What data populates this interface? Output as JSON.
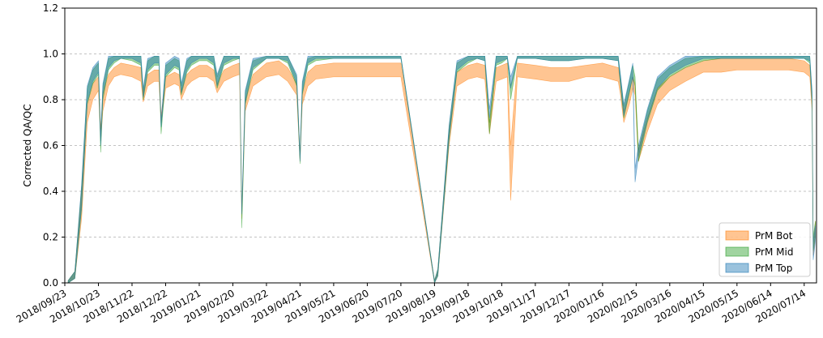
{
  "chart_data": {
    "type": "area",
    "title": "",
    "xlabel": "",
    "ylabel": "Corrected QA/QC",
    "ylim": [
      0.0,
      1.2
    ],
    "xlim": [
      "2018-09-23",
      "2020-07-25"
    ],
    "y_ticks": [
      "0.0",
      "0.2",
      "0.4",
      "0.6",
      "0.8",
      "1.0",
      "1.2"
    ],
    "y_tick_values": [
      0.0,
      0.2,
      0.4,
      0.6,
      0.8,
      1.0,
      1.2
    ],
    "x_ticks": [
      "2018/09/23",
      "2018/10/23",
      "2018/11/22",
      "2018/12/22",
      "2019/01/21",
      "2019/02/20",
      "2019/03/22",
      "2019/04/21",
      "2019/05/21",
      "2019/06/20",
      "2019/07/20",
      "2019/08/19",
      "2019/09/18",
      "2019/10/18",
      "2019/11/17",
      "2019/12/17",
      "2020/01/16",
      "2020/02/15",
      "2020/03/16",
      "2020/04/15",
      "2020/05/15",
      "2020/06/14",
      "2020/07/14"
    ],
    "x_tick_dates": [
      "2018-09-23",
      "2018-10-23",
      "2018-11-22",
      "2018-12-22",
      "2019-01-21",
      "2019-02-20",
      "2019-03-22",
      "2019-04-21",
      "2019-05-21",
      "2019-06-20",
      "2019-07-20",
      "2019-08-19",
      "2019-09-18",
      "2019-10-18",
      "2019-11-17",
      "2019-12-17",
      "2020-01-16",
      "2020-02-15",
      "2020-03-16",
      "2020-04-15",
      "2020-05-15",
      "2020-06-14",
      "2020-07-14"
    ],
    "grid": {
      "y": true,
      "x": false,
      "style": "dashed"
    },
    "legend_position": "lower-right",
    "series": [
      {
        "name": "PrM Bot",
        "color": "#ff7f0e",
        "x": [
          "2018-09-26",
          "2018-10-02",
          "2018-10-08",
          "2018-10-13",
          "2018-10-18",
          "2018-10-23",
          "2018-10-25",
          "2018-10-27",
          "2018-11-01",
          "2018-11-06",
          "2018-11-12",
          "2018-11-22",
          "2018-11-30",
          "2018-12-02",
          "2018-12-06",
          "2018-12-12",
          "2018-12-16",
          "2018-12-18",
          "2018-12-22",
          "2018-12-30",
          "2019-01-03",
          "2019-01-05",
          "2019-01-10",
          "2019-01-14",
          "2019-01-21",
          "2019-01-28",
          "2019-02-03",
          "2019-02-06",
          "2019-02-12",
          "2019-02-20",
          "2019-02-26",
          "2019-02-28",
          "2019-03-03",
          "2019-03-10",
          "2019-03-22",
          "2019-04-02",
          "2019-04-10",
          "2019-04-18",
          "2019-04-21",
          "2019-04-23",
          "2019-04-28",
          "2019-05-05",
          "2019-05-21",
          "2019-06-05",
          "2019-06-20",
          "2019-07-05",
          "2019-07-20",
          "2019-08-19",
          "2019-08-22",
          "2019-09-01",
          "2019-09-08",
          "2019-09-18",
          "2019-09-26",
          "2019-10-03",
          "2019-10-07",
          "2019-10-13",
          "2019-10-18",
          "2019-10-23",
          "2019-10-26",
          "2019-11-01",
          "2019-11-17",
          "2019-12-01",
          "2019-12-17",
          "2020-01-01",
          "2020-01-16",
          "2020-01-30",
          "2020-02-01",
          "2020-02-04",
          "2020-02-09",
          "2020-02-12",
          "2020-02-14",
          "2020-02-17",
          "2020-02-25",
          "2020-03-05",
          "2020-03-16",
          "2020-03-30",
          "2020-04-15",
          "2020-05-01",
          "2020-05-15",
          "2020-05-30",
          "2020-06-14",
          "2020-06-30",
          "2020-07-14",
          "2020-07-19",
          "2020-07-21",
          "2020-07-22",
          "2020-07-24"
        ],
        "lower": [
          0.0,
          0.02,
          0.28,
          0.7,
          0.8,
          0.84,
          0.62,
          0.75,
          0.86,
          0.9,
          0.91,
          0.9,
          0.88,
          0.79,
          0.86,
          0.88,
          0.88,
          0.7,
          0.85,
          0.87,
          0.86,
          0.8,
          0.86,
          0.88,
          0.9,
          0.9,
          0.88,
          0.83,
          0.88,
          0.9,
          0.91,
          0.28,
          0.75,
          0.86,
          0.9,
          0.91,
          0.88,
          0.82,
          0.53,
          0.78,
          0.86,
          0.89,
          0.9,
          0.9,
          0.9,
          0.9,
          0.9,
          0.0,
          0.03,
          0.6,
          0.86,
          0.89,
          0.9,
          0.89,
          0.65,
          0.88,
          0.89,
          0.9,
          0.36,
          0.9,
          0.89,
          0.88,
          0.88,
          0.9,
          0.9,
          0.88,
          0.82,
          0.7,
          0.78,
          0.85,
          0.82,
          0.53,
          0.66,
          0.78,
          0.84,
          0.88,
          0.92,
          0.92,
          0.93,
          0.93,
          0.93,
          0.93,
          0.92,
          0.9,
          0.75,
          0.12,
          0.2
        ],
        "upper": [
          0.01,
          0.05,
          0.4,
          0.78,
          0.87,
          0.9,
          0.67,
          0.83,
          0.91,
          0.94,
          0.96,
          0.95,
          0.94,
          0.83,
          0.91,
          0.93,
          0.93,
          0.73,
          0.9,
          0.92,
          0.91,
          0.84,
          0.91,
          0.93,
          0.95,
          0.95,
          0.93,
          0.87,
          0.93,
          0.95,
          0.96,
          0.31,
          0.8,
          0.91,
          0.96,
          0.97,
          0.94,
          0.87,
          0.56,
          0.83,
          0.92,
          0.95,
          0.96,
          0.96,
          0.96,
          0.96,
          0.96,
          0.01,
          0.06,
          0.66,
          0.92,
          0.95,
          0.96,
          0.95,
          0.7,
          0.94,
          0.95,
          0.96,
          0.6,
          0.96,
          0.95,
          0.94,
          0.94,
          0.95,
          0.96,
          0.94,
          0.87,
          0.75,
          0.83,
          0.9,
          0.87,
          0.58,
          0.72,
          0.85,
          0.9,
          0.94,
          0.97,
          0.98,
          0.98,
          0.98,
          0.98,
          0.98,
          0.97,
          0.95,
          0.8,
          0.16,
          0.27
        ]
      },
      {
        "name": "PrM Mid",
        "color": "#2ca02c",
        "x": [
          "2018-09-26",
          "2018-10-02",
          "2018-10-08",
          "2018-10-13",
          "2018-10-18",
          "2018-10-23",
          "2018-10-25",
          "2018-10-27",
          "2018-11-01",
          "2018-11-06",
          "2018-11-12",
          "2018-11-22",
          "2018-11-30",
          "2018-12-02",
          "2018-12-06",
          "2018-12-12",
          "2018-12-16",
          "2018-12-18",
          "2018-12-22",
          "2018-12-30",
          "2019-01-03",
          "2019-01-05",
          "2019-01-10",
          "2019-01-14",
          "2019-01-21",
          "2019-01-28",
          "2019-02-03",
          "2019-02-06",
          "2019-02-12",
          "2019-02-20",
          "2019-02-26",
          "2019-02-28",
          "2019-03-03",
          "2019-03-10",
          "2019-03-22",
          "2019-04-02",
          "2019-04-10",
          "2019-04-18",
          "2019-04-21",
          "2019-04-23",
          "2019-04-28",
          "2019-05-05",
          "2019-05-21",
          "2019-06-05",
          "2019-06-20",
          "2019-07-05",
          "2019-07-20",
          "2019-08-19",
          "2019-08-22",
          "2019-09-01",
          "2019-09-08",
          "2019-09-18",
          "2019-09-26",
          "2019-10-03",
          "2019-10-07",
          "2019-10-13",
          "2019-10-18",
          "2019-10-23",
          "2019-10-26",
          "2019-11-01",
          "2019-11-17",
          "2019-12-01",
          "2019-12-17",
          "2020-01-01",
          "2020-01-16",
          "2020-01-30",
          "2020-02-01",
          "2020-02-04",
          "2020-02-09",
          "2020-02-12",
          "2020-02-14",
          "2020-02-17",
          "2020-02-25",
          "2020-03-05",
          "2020-03-16",
          "2020-03-30",
          "2020-04-15",
          "2020-05-01",
          "2020-05-15",
          "2020-05-30",
          "2020-06-14",
          "2020-06-30",
          "2020-07-14",
          "2020-07-19",
          "2020-07-21",
          "2020-07-22",
          "2020-07-24"
        ],
        "lower": [
          0.0,
          0.02,
          0.32,
          0.78,
          0.87,
          0.91,
          0.57,
          0.8,
          0.93,
          0.96,
          0.98,
          0.97,
          0.95,
          0.8,
          0.92,
          0.95,
          0.95,
          0.65,
          0.9,
          0.94,
          0.93,
          0.82,
          0.92,
          0.95,
          0.97,
          0.97,
          0.95,
          0.85,
          0.95,
          0.97,
          0.98,
          0.24,
          0.78,
          0.93,
          0.98,
          0.98,
          0.96,
          0.86,
          0.52,
          0.82,
          0.95,
          0.97,
          0.98,
          0.98,
          0.98,
          0.98,
          0.98,
          0.0,
          0.03,
          0.62,
          0.92,
          0.96,
          0.98,
          0.97,
          0.65,
          0.95,
          0.96,
          0.98,
          0.8,
          0.98,
          0.98,
          0.97,
          0.97,
          0.98,
          0.98,
          0.97,
          0.86,
          0.72,
          0.83,
          0.9,
          0.86,
          0.53,
          0.7,
          0.84,
          0.9,
          0.94,
          0.97,
          0.98,
          0.98,
          0.98,
          0.98,
          0.98,
          0.98,
          0.96,
          0.78,
          0.14,
          0.2
        ],
        "upper": [
          0.01,
          0.05,
          0.42,
          0.85,
          0.93,
          0.96,
          0.62,
          0.86,
          0.98,
          0.99,
          0.99,
          0.99,
          0.99,
          0.84,
          0.97,
          0.99,
          0.99,
          0.68,
          0.95,
          0.98,
          0.97,
          0.86,
          0.97,
          0.99,
          0.99,
          0.99,
          0.99,
          0.9,
          0.99,
          0.99,
          0.99,
          0.27,
          0.83,
          0.97,
          0.99,
          0.99,
          0.99,
          0.9,
          0.55,
          0.87,
          0.98,
          0.99,
          0.99,
          0.99,
          0.99,
          0.99,
          0.99,
          0.01,
          0.06,
          0.68,
          0.96,
          0.99,
          0.99,
          0.99,
          0.7,
          0.99,
          0.99,
          0.99,
          0.86,
          0.99,
          0.99,
          0.99,
          0.99,
          0.99,
          0.99,
          0.99,
          0.9,
          0.77,
          0.88,
          0.95,
          0.9,
          0.58,
          0.75,
          0.89,
          0.94,
          0.98,
          0.99,
          0.99,
          0.99,
          0.99,
          0.99,
          0.99,
          0.99,
          0.99,
          0.83,
          0.2,
          0.27
        ]
      },
      {
        "name": "PrM Top",
        "color": "#1f77b4",
        "x": [
          "2018-09-26",
          "2018-10-02",
          "2018-10-08",
          "2018-10-13",
          "2018-10-18",
          "2018-10-23",
          "2018-10-25",
          "2018-10-27",
          "2018-11-01",
          "2018-11-06",
          "2018-11-12",
          "2018-11-22",
          "2018-11-30",
          "2018-12-02",
          "2018-12-06",
          "2018-12-12",
          "2018-12-16",
          "2018-12-18",
          "2018-12-22",
          "2018-12-30",
          "2019-01-03",
          "2019-01-05",
          "2019-01-10",
          "2019-01-14",
          "2019-01-21",
          "2019-01-28",
          "2019-02-03",
          "2019-02-06",
          "2019-02-12",
          "2019-02-20",
          "2019-02-26",
          "2019-02-28",
          "2019-03-03",
          "2019-03-10",
          "2019-03-22",
          "2019-04-02",
          "2019-04-10",
          "2019-04-18",
          "2019-04-21",
          "2019-04-23",
          "2019-04-28",
          "2019-05-05",
          "2019-05-21",
          "2019-06-05",
          "2019-06-20",
          "2019-07-05",
          "2019-07-20",
          "2019-08-19",
          "2019-08-22",
          "2019-09-01",
          "2019-09-08",
          "2019-09-18",
          "2019-09-26",
          "2019-10-03",
          "2019-10-07",
          "2019-10-13",
          "2019-10-18",
          "2019-10-23",
          "2019-10-26",
          "2019-11-01",
          "2019-11-17",
          "2019-12-01",
          "2019-12-17",
          "2020-01-01",
          "2020-01-16",
          "2020-01-30",
          "2020-02-01",
          "2020-02-04",
          "2020-02-09",
          "2020-02-12",
          "2020-02-14",
          "2020-02-17",
          "2020-02-25",
          "2020-03-05",
          "2020-03-16",
          "2020-03-30",
          "2020-04-15",
          "2020-05-01",
          "2020-05-15",
          "2020-05-30",
          "2020-06-14",
          "2020-06-30",
          "2020-07-14",
          "2020-07-19",
          "2020-07-21",
          "2020-07-22",
          "2020-07-24"
        ],
        "lower": [
          0.0,
          0.02,
          0.33,
          0.79,
          0.88,
          0.92,
          0.6,
          0.82,
          0.94,
          0.97,
          0.98,
          0.98,
          0.96,
          0.81,
          0.93,
          0.96,
          0.96,
          0.68,
          0.91,
          0.95,
          0.94,
          0.83,
          0.93,
          0.96,
          0.98,
          0.98,
          0.96,
          0.86,
          0.96,
          0.98,
          0.98,
          0.3,
          0.79,
          0.94,
          0.98,
          0.98,
          0.97,
          0.87,
          0.53,
          0.83,
          0.96,
          0.98,
          0.98,
          0.98,
          0.98,
          0.98,
          0.98,
          0.0,
          0.03,
          0.63,
          0.93,
          0.97,
          0.98,
          0.97,
          0.72,
          0.96,
          0.97,
          0.98,
          0.85,
          0.98,
          0.98,
          0.97,
          0.97,
          0.98,
          0.98,
          0.97,
          0.87,
          0.73,
          0.84,
          0.9,
          0.44,
          0.55,
          0.71,
          0.85,
          0.91,
          0.95,
          0.98,
          0.98,
          0.98,
          0.98,
          0.98,
          0.98,
          0.98,
          0.97,
          0.79,
          0.1,
          0.18
        ],
        "upper": [
          0.01,
          0.05,
          0.43,
          0.86,
          0.94,
          0.97,
          0.64,
          0.87,
          0.99,
          0.99,
          0.99,
          0.99,
          0.99,
          0.85,
          0.98,
          0.99,
          0.99,
          0.71,
          0.96,
          0.99,
          0.98,
          0.87,
          0.98,
          0.99,
          0.99,
          0.99,
          0.99,
          0.91,
          0.99,
          0.99,
          0.99,
          0.33,
          0.84,
          0.98,
          0.99,
          0.99,
          0.99,
          0.91,
          0.56,
          0.88,
          0.99,
          0.99,
          0.99,
          0.99,
          0.99,
          0.99,
          0.99,
          0.01,
          0.06,
          0.69,
          0.97,
          0.99,
          0.99,
          0.99,
          0.76,
          0.99,
          0.99,
          0.99,
          0.9,
          0.99,
          0.99,
          0.99,
          0.99,
          0.99,
          0.99,
          0.99,
          0.91,
          0.78,
          0.89,
          0.96,
          0.5,
          0.6,
          0.76,
          0.9,
          0.95,
          0.99,
          0.99,
          0.99,
          0.99,
          0.99,
          0.99,
          0.99,
          0.99,
          0.99,
          0.84,
          0.18,
          0.25
        ]
      }
    ]
  }
}
